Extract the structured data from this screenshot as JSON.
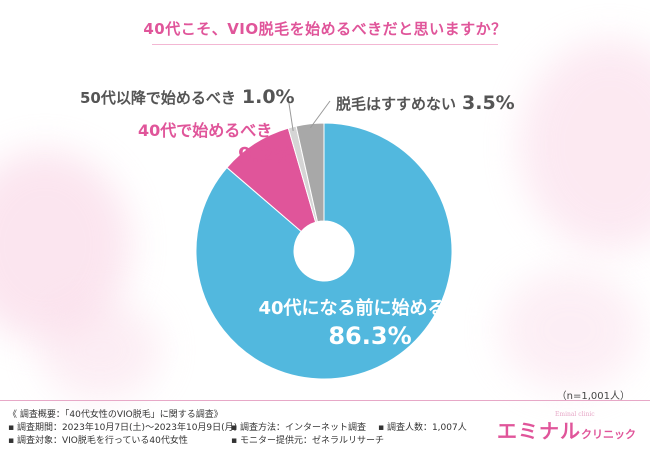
{
  "title": "40代こそ、VIO脱毛を始めるべきだと思いますか？",
  "chart_data": {
    "type": "pie",
    "donut": true,
    "slices": [
      {
        "label": "40代になる前に始めるべき",
        "value": 86.3,
        "value_text": "86.3%",
        "color": "#52b8de"
      },
      {
        "label": "40代で始めるべき",
        "value": 9.2,
        "value_text": "9.2%",
        "color": "#e0559a"
      },
      {
        "label": "50代以降で始めるべき",
        "value": 1.0,
        "value_text": "1.0%",
        "color": "#d5d5d5"
      },
      {
        "label": "脱毛はすすめない",
        "value": 3.5,
        "value_text": "3.5%",
        "color": "#a8a8a8"
      }
    ]
  },
  "sample_note": "（n=1,001人）",
  "footer": {
    "summary": "《 調査概要：「40代女性のVIO脱毛」に関する調査》",
    "period": "▪ 調査期間：2023年10月7日(土)～2023年10月9日(月)",
    "target": "▪ 調査対象：VIO脱毛を行っている40代女性",
    "method": "▪ 調査方法：インターネット調査",
    "provider": "▪ モニター提供元：ゼネラルリサーチ",
    "count": "▪ 調査人数：1,007人"
  },
  "logo": {
    "main": "エミナル",
    "sub": "クリニック",
    "en": "Eminal clinic"
  }
}
